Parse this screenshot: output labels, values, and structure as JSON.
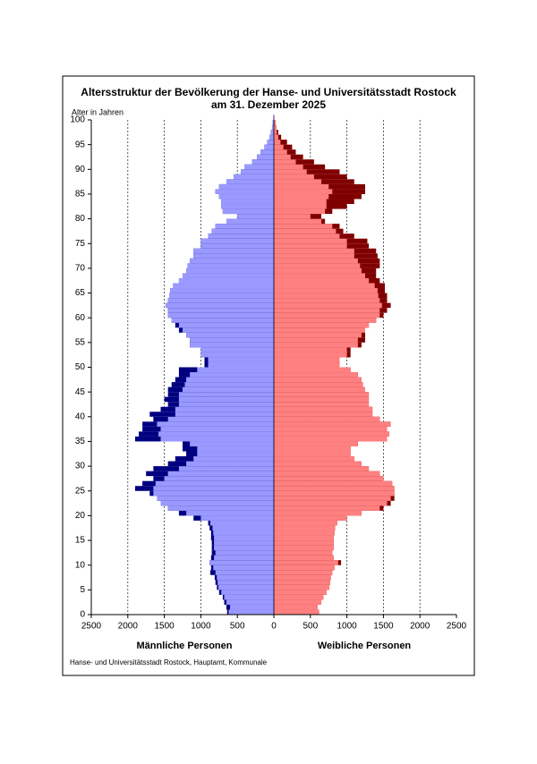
{
  "chart_data": {
    "type": "population-pyramid",
    "title": [
      "Altersstruktur der Bevölkerung der Hanse- und Universitätsstadt Rostock",
      "am 31. Dezember 2025"
    ],
    "y_label": "Alter in Jahren",
    "source": "Hanse- und Universitätsstadt Rostock, Hauptamt, Kommunale",
    "ages": [
      0,
      1,
      2,
      3,
      4,
      5,
      6,
      7,
      8,
      9,
      10,
      11,
      12,
      13,
      14,
      15,
      16,
      17,
      18,
      19,
      20,
      21,
      22,
      23,
      24,
      25,
      26,
      27,
      28,
      29,
      30,
      31,
      32,
      33,
      34,
      35,
      36,
      37,
      38,
      39,
      40,
      41,
      42,
      43,
      44,
      45,
      46,
      47,
      48,
      49,
      50,
      51,
      52,
      53,
      54,
      55,
      56,
      57,
      58,
      59,
      60,
      61,
      62,
      63,
      64,
      65,
      66,
      67,
      68,
      69,
      70,
      71,
      72,
      73,
      74,
      75,
      76,
      77,
      78,
      79,
      80,
      81,
      82,
      83,
      84,
      85,
      86,
      87,
      88,
      89,
      90,
      91,
      92,
      93,
      94,
      95,
      96,
      97,
      98,
      99,
      100
    ],
    "series": [
      {
        "name": "Männliche Personen",
        "side": "left",
        "color": "#9999ff",
        "surplus_color": "#000080",
        "values": [
          640,
          650,
          680,
          700,
          750,
          780,
          800,
          810,
          870,
          860,
          880,
          860,
          850,
          850,
          850,
          860,
          860,
          880,
          900,
          1100,
          1300,
          1450,
          1550,
          1600,
          1700,
          1900,
          1800,
          1650,
          1750,
          1650,
          1450,
          1350,
          1200,
          1250,
          1250,
          1900,
          1850,
          1800,
          1800,
          1650,
          1700,
          1550,
          1450,
          1500,
          1450,
          1450,
          1400,
          1350,
          1300,
          1300,
          950,
          950,
          1000,
          1000,
          1150,
          1150,
          1200,
          1300,
          1350,
          1400,
          1450,
          1450,
          1480,
          1450,
          1430,
          1420,
          1380,
          1300,
          1250,
          1200,
          1180,
          1150,
          1100,
          1100,
          1000,
          1000,
          900,
          850,
          800,
          650,
          500,
          700,
          720,
          720,
          750,
          800,
          750,
          650,
          550,
          450,
          400,
          300,
          230,
          180,
          130,
          90,
          60,
          40,
          25,
          15,
          10
        ]
      },
      {
        "name": "Weibliche Personen",
        "side": "right",
        "color": "#ff8080",
        "surplus_color": "#800000",
        "values": [
          620,
          600,
          650,
          680,
          720,
          760,
          770,
          780,
          800,
          830,
          920,
          820,
          800,
          820,
          820,
          820,
          830,
          840,
          870,
          1000,
          1200,
          1500,
          1600,
          1650,
          1650,
          1650,
          1620,
          1500,
          1450,
          1300,
          1200,
          1100,
          1050,
          1050,
          1150,
          1550,
          1580,
          1550,
          1600,
          1450,
          1350,
          1350,
          1300,
          1300,
          1300,
          1250,
          1220,
          1200,
          1150,
          1050,
          900,
          900,
          1050,
          1050,
          1200,
          1250,
          1250,
          1250,
          1300,
          1400,
          1500,
          1550,
          1600,
          1550,
          1550,
          1520,
          1520,
          1450,
          1400,
          1400,
          1450,
          1450,
          1420,
          1400,
          1300,
          1280,
          1100,
          950,
          900,
          700,
          650,
          800,
          1000,
          1100,
          1200,
          1250,
          1250,
          1100,
          1000,
          900,
          700,
          550,
          400,
          300,
          250,
          180,
          100,
          60,
          30,
          20,
          10
        ]
      }
    ],
    "xlim": [
      -2500,
      2500
    ],
    "xticks": [
      {
        "value": -2500,
        "label": "2500"
      },
      {
        "value": -2000,
        "label": "2000"
      },
      {
        "value": -1500,
        "label": "1500"
      },
      {
        "value": -1000,
        "label": "1000"
      },
      {
        "value": -500,
        "label": "500"
      },
      0,
      500,
      1000,
      1500,
      2000,
      2500
    ],
    "ylim": [
      0,
      100
    ],
    "yticks": [
      0,
      5,
      10,
      15,
      20,
      25,
      30,
      35,
      40,
      45,
      50,
      55,
      60,
      65,
      70,
      75,
      80,
      85,
      90,
      95,
      100
    ],
    "grid": true
  }
}
